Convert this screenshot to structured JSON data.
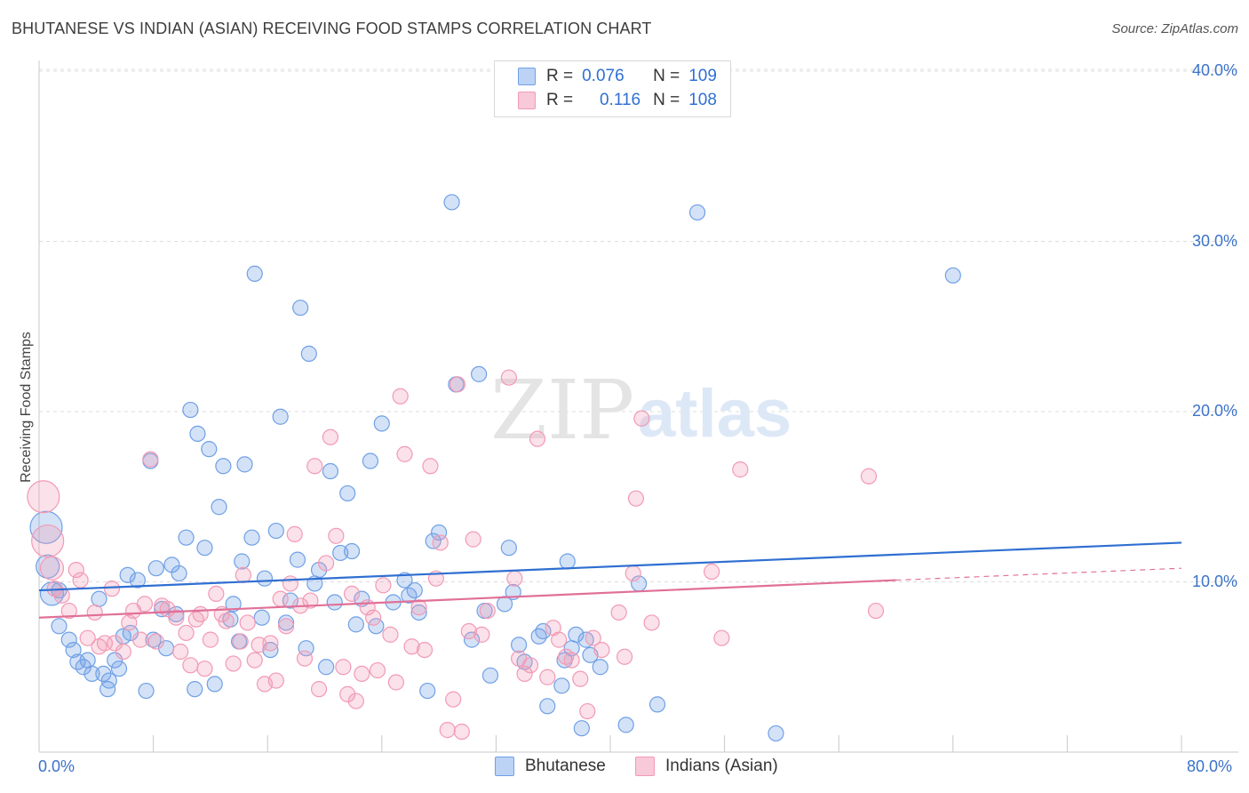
{
  "title": "BHUTANESE VS INDIAN (ASIAN) RECEIVING FOOD STAMPS CORRELATION CHART",
  "source": "Source: ZipAtlas.com",
  "watermark": {
    "part1": "ZIP",
    "part2": "atlas"
  },
  "legend_top": {
    "rows": [
      {
        "r_label": "R =",
        "r_value": "0.076",
        "n_label": "N =",
        "n_value": "109"
      },
      {
        "r_label": "R =",
        "r_value": "0.116",
        "n_label": "N =",
        "n_value": "108"
      }
    ]
  },
  "chart_data": {
    "type": "scatter",
    "title": "BHUTANESE VS INDIAN (ASIAN) RECEIVING FOOD STAMPS CORRELATION CHART",
    "xlabel": "",
    "ylabel": "Receiving Food Stamps",
    "xlim": [
      0,
      80
    ],
    "ylim": [
      0,
      42
    ],
    "x_tick_labels": [
      "0.0%",
      "80.0%"
    ],
    "y_ticks": [
      10,
      20,
      30,
      40
    ],
    "y_tick_labels": [
      "10.0%",
      "20.0%",
      "30.0%",
      "40.0%"
    ],
    "grid": true,
    "legend_position": "top-center",
    "colors": {
      "bhutanese": "#6fa0e6",
      "indian": "#f29ab5",
      "bhutanese_line": "#2f6fd1",
      "indian_line": "#e07098"
    },
    "series": [
      {
        "name": "Bhutanese",
        "R": 0.076,
        "N": 109,
        "trend": {
          "x": [
            0,
            80
          ],
          "y": [
            9.5,
            12.3
          ]
        },
        "points": [
          [
            0.5,
            13.2
          ],
          [
            0.6,
            10.9
          ],
          [
            0.9,
            9.3
          ],
          [
            1.4,
            7.4
          ],
          [
            1.4,
            9.5
          ],
          [
            2.1,
            6.6
          ],
          [
            2.4,
            6.0
          ],
          [
            2.7,
            5.3
          ],
          [
            3.1,
            5.0
          ],
          [
            3.4,
            5.4
          ],
          [
            3.7,
            4.6
          ],
          [
            4.2,
            9.0
          ],
          [
            4.5,
            4.6
          ],
          [
            4.8,
            3.7
          ],
          [
            4.9,
            4.2
          ],
          [
            5.3,
            5.4
          ],
          [
            5.6,
            4.9
          ],
          [
            5.9,
            6.8
          ],
          [
            6.2,
            10.4
          ],
          [
            6.4,
            7.0
          ],
          [
            6.9,
            10.1
          ],
          [
            7.5,
            3.6
          ],
          [
            7.8,
            17.1
          ],
          [
            8.0,
            6.6
          ],
          [
            8.2,
            10.8
          ],
          [
            8.6,
            8.4
          ],
          [
            8.9,
            6.1
          ],
          [
            9.3,
            11.0
          ],
          [
            9.6,
            8.1
          ],
          [
            9.8,
            10.5
          ],
          [
            10.3,
            12.6
          ],
          [
            10.6,
            20.1
          ],
          [
            10.9,
            3.7
          ],
          [
            11.1,
            18.7
          ],
          [
            11.6,
            12.0
          ],
          [
            11.9,
            17.8
          ],
          [
            12.3,
            4.0
          ],
          [
            12.6,
            14.4
          ],
          [
            12.9,
            16.8
          ],
          [
            13.4,
            7.8
          ],
          [
            13.6,
            8.7
          ],
          [
            14.0,
            6.5
          ],
          [
            14.2,
            11.2
          ],
          [
            14.4,
            16.9
          ],
          [
            14.9,
            12.6
          ],
          [
            15.1,
            28.1
          ],
          [
            15.6,
            7.9
          ],
          [
            15.8,
            10.2
          ],
          [
            16.2,
            6.0
          ],
          [
            16.6,
            13.0
          ],
          [
            16.9,
            19.7
          ],
          [
            17.3,
            7.6
          ],
          [
            17.6,
            8.9
          ],
          [
            18.1,
            11.3
          ],
          [
            18.3,
            26.1
          ],
          [
            18.7,
            6.1
          ],
          [
            18.9,
            23.4
          ],
          [
            19.3,
            9.9
          ],
          [
            19.6,
            10.7
          ],
          [
            20.1,
            5.0
          ],
          [
            20.4,
            16.5
          ],
          [
            20.7,
            8.8
          ],
          [
            21.1,
            11.7
          ],
          [
            21.6,
            15.2
          ],
          [
            21.9,
            11.8
          ],
          [
            22.2,
            7.5
          ],
          [
            22.6,
            9.0
          ],
          [
            23.2,
            17.1
          ],
          [
            23.6,
            7.4
          ],
          [
            24.0,
            19.3
          ],
          [
            24.8,
            8.8
          ],
          [
            25.6,
            10.1
          ],
          [
            25.9,
            9.2
          ],
          [
            26.3,
            9.5
          ],
          [
            26.6,
            8.2
          ],
          [
            27.2,
            3.6
          ],
          [
            27.6,
            12.4
          ],
          [
            28.0,
            12.9
          ],
          [
            28.9,
            32.3
          ],
          [
            29.2,
            21.6
          ],
          [
            30.3,
            6.6
          ],
          [
            30.8,
            22.2
          ],
          [
            31.2,
            8.3
          ],
          [
            31.6,
            4.5
          ],
          [
            32.6,
            8.7
          ],
          [
            32.9,
            12.0
          ],
          [
            33.2,
            9.4
          ],
          [
            33.6,
            6.3
          ],
          [
            34.0,
            5.3
          ],
          [
            35.0,
            6.8
          ],
          [
            35.3,
            7.1
          ],
          [
            35.6,
            2.7
          ],
          [
            36.6,
            3.9
          ],
          [
            36.8,
            5.4
          ],
          [
            37.0,
            11.2
          ],
          [
            37.3,
            6.1
          ],
          [
            37.6,
            6.9
          ],
          [
            38.0,
            1.4
          ],
          [
            38.3,
            6.6
          ],
          [
            38.6,
            5.7
          ],
          [
            39.3,
            5.0
          ],
          [
            41.1,
            1.6
          ],
          [
            42.0,
            9.9
          ],
          [
            43.3,
            2.8
          ],
          [
            46.1,
            31.7
          ],
          [
            51.6,
            1.1
          ],
          [
            64.0,
            28.0
          ]
        ]
      },
      {
        "name": "Indians (Asian)",
        "R": 0.116,
        "N": 108,
        "trend": {
          "x": [
            0,
            60
          ],
          "y": [
            7.9,
            10.1
          ]
        },
        "trend_dashed": {
          "x": [
            60,
            80
          ],
          "y": [
            10.1,
            10.8
          ]
        },
        "points": [
          [
            0.3,
            15.0
          ],
          [
            0.6,
            12.4
          ],
          [
            0.9,
            10.8
          ],
          [
            1.1,
            9.6
          ],
          [
            1.6,
            9.2
          ],
          [
            2.1,
            8.3
          ],
          [
            2.6,
            10.7
          ],
          [
            2.9,
            10.1
          ],
          [
            3.4,
            6.7
          ],
          [
            3.9,
            8.2
          ],
          [
            4.2,
            6.2
          ],
          [
            4.6,
            6.4
          ],
          [
            5.1,
            9.6
          ],
          [
            5.3,
            6.4
          ],
          [
            5.9,
            5.9
          ],
          [
            6.3,
            7.6
          ],
          [
            6.6,
            8.3
          ],
          [
            7.1,
            6.6
          ],
          [
            7.4,
            8.7
          ],
          [
            7.8,
            17.2
          ],
          [
            8.2,
            6.5
          ],
          [
            8.6,
            8.6
          ],
          [
            9.0,
            8.4
          ],
          [
            9.6,
            7.9
          ],
          [
            9.9,
            5.9
          ],
          [
            10.3,
            7.0
          ],
          [
            10.6,
            5.1
          ],
          [
            11.0,
            7.8
          ],
          [
            11.3,
            8.1
          ],
          [
            11.6,
            4.9
          ],
          [
            12.0,
            6.6
          ],
          [
            12.4,
            9.3
          ],
          [
            12.8,
            8.1
          ],
          [
            13.1,
            7.7
          ],
          [
            13.6,
            5.2
          ],
          [
            14.1,
            6.5
          ],
          [
            14.3,
            10.4
          ],
          [
            14.6,
            7.6
          ],
          [
            15.1,
            5.4
          ],
          [
            15.4,
            6.3
          ],
          [
            15.8,
            4.0
          ],
          [
            16.2,
            6.4
          ],
          [
            16.6,
            4.2
          ],
          [
            16.9,
            9.0
          ],
          [
            17.3,
            7.4
          ],
          [
            17.6,
            9.9
          ],
          [
            17.9,
            12.8
          ],
          [
            18.3,
            8.6
          ],
          [
            18.6,
            5.5
          ],
          [
            19.0,
            8.9
          ],
          [
            19.3,
            16.8
          ],
          [
            19.6,
            3.7
          ],
          [
            20.1,
            11.1
          ],
          [
            20.4,
            18.5
          ],
          [
            20.8,
            12.7
          ],
          [
            21.3,
            5.0
          ],
          [
            21.6,
            3.4
          ],
          [
            21.9,
            9.3
          ],
          [
            22.2,
            3.0
          ],
          [
            22.6,
            4.6
          ],
          [
            23.0,
            8.5
          ],
          [
            23.4,
            7.9
          ],
          [
            23.7,
            4.8
          ],
          [
            24.1,
            9.8
          ],
          [
            24.6,
            6.9
          ],
          [
            25.0,
            4.1
          ],
          [
            25.3,
            20.9
          ],
          [
            25.6,
            17.5
          ],
          [
            26.1,
            6.2
          ],
          [
            26.6,
            8.5
          ],
          [
            27.0,
            6.0
          ],
          [
            27.4,
            16.8
          ],
          [
            27.8,
            10.2
          ],
          [
            28.1,
            12.3
          ],
          [
            28.6,
            1.3
          ],
          [
            29.0,
            3.1
          ],
          [
            29.3,
            21.6
          ],
          [
            29.6,
            1.2
          ],
          [
            30.1,
            7.1
          ],
          [
            30.4,
            12.5
          ],
          [
            31.0,
            6.9
          ],
          [
            31.4,
            8.3
          ],
          [
            32.9,
            22.0
          ],
          [
            33.3,
            10.2
          ],
          [
            33.6,
            5.5
          ],
          [
            34.0,
            4.6
          ],
          [
            34.4,
            5.1
          ],
          [
            34.9,
            18.4
          ],
          [
            35.6,
            4.4
          ],
          [
            36.0,
            7.3
          ],
          [
            36.4,
            6.6
          ],
          [
            36.9,
            5.6
          ],
          [
            37.3,
            5.4
          ],
          [
            37.9,
            4.3
          ],
          [
            38.4,
            2.4
          ],
          [
            38.8,
            6.7
          ],
          [
            39.4,
            6.0
          ],
          [
            40.6,
            8.2
          ],
          [
            41.0,
            5.6
          ],
          [
            41.6,
            10.5
          ],
          [
            41.8,
            14.9
          ],
          [
            42.2,
            19.6
          ],
          [
            42.9,
            7.6
          ],
          [
            47.1,
            10.6
          ],
          [
            47.8,
            6.7
          ],
          [
            49.1,
            16.6
          ],
          [
            58.1,
            16.2
          ],
          [
            58.6,
            8.3
          ]
        ]
      }
    ]
  },
  "legend_bottom": {
    "items": [
      "Bhutanese",
      "Indians (Asian)"
    ]
  }
}
